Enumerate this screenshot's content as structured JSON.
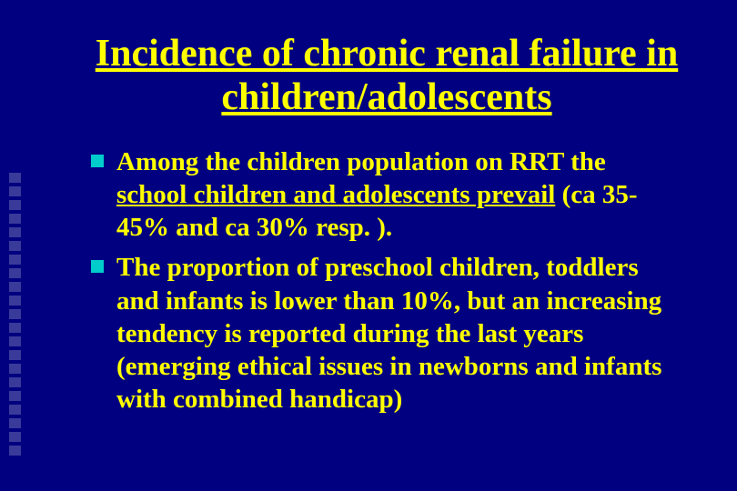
{
  "background_color": "#000080",
  "title_color": "#ffff00",
  "text_color": "#ffff00",
  "bullet_color": "#00cccc",
  "decoration_color": "#3a3a9a",
  "title": "Incidence of chronic renal failure in children/adolescents",
  "title_fontsize": 42,
  "body_fontsize": 29,
  "bullets": [
    {
      "parts": [
        {
          "text": "Among the children population on RRT the ",
          "underline": false
        },
        {
          "text": "school children and adolescents prevail",
          "underline": true
        },
        {
          "text": " (ca 35-45% and ca 30% resp. ).",
          "underline": false
        }
      ]
    },
    {
      "parts": [
        {
          "text": "The proportion of preschool children, toddlers and infants is lower than 10%, but an increasing tendency is reported during the last years (emerging ethical issues in newborns and infants with combined handicap)",
          "underline": false
        }
      ]
    }
  ],
  "decoration_square_count": 21
}
